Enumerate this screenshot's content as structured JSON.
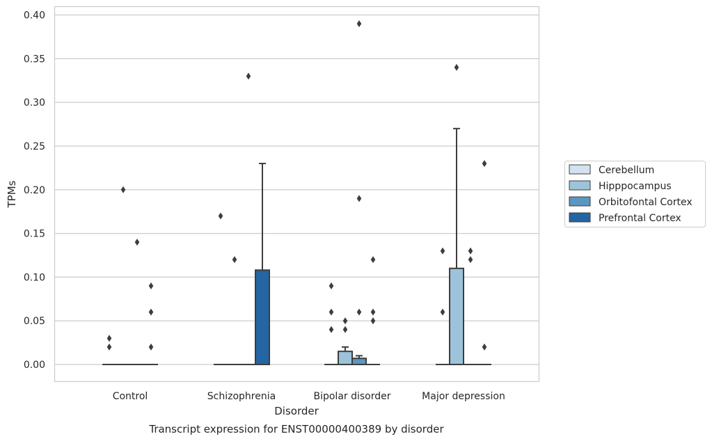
{
  "chart_data": {
    "type": "box",
    "title": "Transcript expression for ENST00000400389 by disorder",
    "xlabel": "Disorder",
    "ylabel": "TPMs",
    "categories": [
      "Control",
      "Schizophrenia",
      "Bipolar disorder",
      "Major depression"
    ],
    "ylim": [
      -0.019,
      0.41
    ],
    "yticks": [
      "0.00",
      "0.05",
      "0.10",
      "0.15",
      "0.20",
      "0.25",
      "0.30",
      "0.35",
      "0.40"
    ],
    "grid": true,
    "legend_position": "right",
    "series": [
      {
        "name": "Cerebellum",
        "color": "#d4e2ef",
        "boxes": [
          {
            "q1": 0,
            "median": 0,
            "q3": 0,
            "whisker_low": 0,
            "whisker_high": 0,
            "outliers": [
              0.03,
              0.02
            ]
          },
          {
            "q1": 0,
            "median": 0,
            "q3": 0,
            "whisker_low": 0,
            "whisker_high": 0,
            "outliers": [
              0.17
            ]
          },
          {
            "q1": 0,
            "median": 0,
            "q3": 0,
            "whisker_low": 0,
            "whisker_high": 0,
            "outliers": [
              0.09,
              0.06,
              0.04
            ]
          },
          {
            "q1": 0,
            "median": 0,
            "q3": 0,
            "whisker_low": 0,
            "whisker_high": 0,
            "outliers": [
              0.13,
              0.06
            ]
          }
        ]
      },
      {
        "name": "Hipppocampus",
        "color": "#9cc3da",
        "boxes": [
          {
            "q1": 0,
            "median": 0,
            "q3": 0,
            "whisker_low": 0,
            "whisker_high": 0,
            "outliers": [
              0.2
            ]
          },
          {
            "q1": 0,
            "median": 0,
            "q3": 0,
            "whisker_low": 0,
            "whisker_high": 0,
            "outliers": [
              0.12
            ]
          },
          {
            "q1": 0,
            "median": 0,
            "q3": 0.015,
            "whisker_low": 0,
            "whisker_high": 0.02,
            "outliers": [
              0.05,
              0.04
            ]
          },
          {
            "q1": 0,
            "median": 0,
            "q3": 0.11,
            "whisker_low": 0,
            "whisker_high": 0.27,
            "outliers": [
              0.34
            ]
          }
        ]
      },
      {
        "name": "Orbitofontal Cortex",
        "color": "#5a97c1",
        "boxes": [
          {
            "q1": 0,
            "median": 0,
            "q3": 0,
            "whisker_low": 0,
            "whisker_high": 0,
            "outliers": [
              0.14
            ]
          },
          {
            "q1": 0,
            "median": 0,
            "q3": 0,
            "whisker_low": 0,
            "whisker_high": 0,
            "outliers": [
              0.33
            ]
          },
          {
            "q1": 0,
            "median": 0,
            "q3": 0.007,
            "whisker_low": 0,
            "whisker_high": 0.01,
            "outliers": [
              0.39,
              0.19,
              0.06
            ]
          },
          {
            "q1": 0,
            "median": 0,
            "q3": 0,
            "whisker_low": 0,
            "whisker_high": 0,
            "outliers": [
              0.13,
              0.12
            ]
          }
        ]
      },
      {
        "name": "Prefrontal Cortex",
        "color": "#2465a4",
        "boxes": [
          {
            "q1": 0,
            "median": 0,
            "q3": 0,
            "whisker_low": 0,
            "whisker_high": 0,
            "outliers": [
              0.09,
              0.06,
              0.02
            ]
          },
          {
            "q1": 0,
            "median": 0,
            "q3": 0.108,
            "whisker_low": 0,
            "whisker_high": 0.23,
            "outliers": []
          },
          {
            "q1": 0,
            "median": 0,
            "q3": 0,
            "whisker_low": 0,
            "whisker_high": 0,
            "outliers": [
              0.12,
              0.06,
              0.05
            ]
          },
          {
            "q1": 0,
            "median": 0,
            "q3": 0,
            "whisker_low": 0,
            "whisker_high": 0,
            "outliers": [
              0.23,
              0.02
            ]
          }
        ]
      }
    ]
  }
}
